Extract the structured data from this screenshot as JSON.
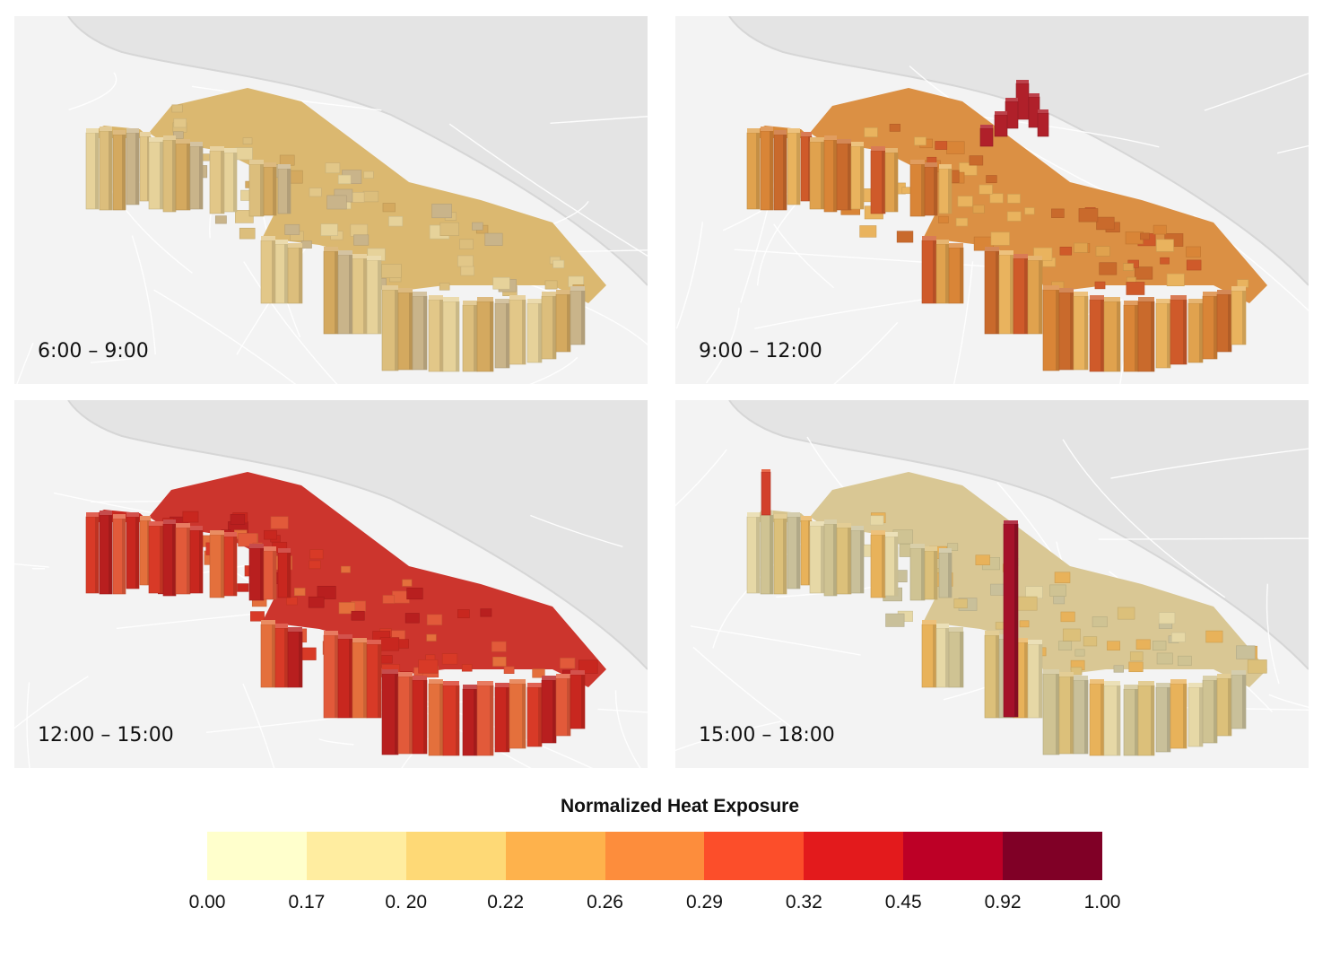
{
  "panels": [
    {
      "label": "6:00 – 9:00",
      "base": "#d9b468",
      "shade": [
        "#e6d29a",
        "#dcbe7c",
        "#d4a95f",
        "#c9b48a",
        "#e2c788"
      ],
      "side": "#cfa45e",
      "hot": null
    },
    {
      "label": "9:00 – 12:00",
      "base": "#d98a3a",
      "shade": [
        "#e0a24e",
        "#d98537",
        "#c96a2c",
        "#e9b35e",
        "#cf5a2a"
      ],
      "side": "#e2a650",
      "hot": "#b0202a"
    },
    {
      "label": "12:00 – 15:00",
      "base": "#c92a22",
      "shade": [
        "#d83a27",
        "#b81f1f",
        "#e25a3a",
        "#c8271f",
        "#e4703c"
      ],
      "side": "#d9322a",
      "hot": null
    },
    {
      "label": "15:00 – 18:00",
      "base": "#d7c48e",
      "shade": [
        "#e6d8a6",
        "#cfc393",
        "#dcc07a",
        "#c9c09a",
        "#e8b25a"
      ],
      "side": "#dcc383",
      "hot": "#a5112a"
    }
  ],
  "legend": {
    "title": "Normalized Heat Exposure",
    "colors": [
      "#ffffcc",
      "#ffeda0",
      "#fed976",
      "#feb24c",
      "#fd8d3c",
      "#fc4e2a",
      "#e31a1c",
      "#bd0026",
      "#800026"
    ],
    "ticks": [
      "0.00",
      "0.17",
      "0. 20",
      "0.22",
      "0.26",
      "0.29",
      "0.32",
      "0.45",
      "0.92",
      "1.00"
    ]
  }
}
